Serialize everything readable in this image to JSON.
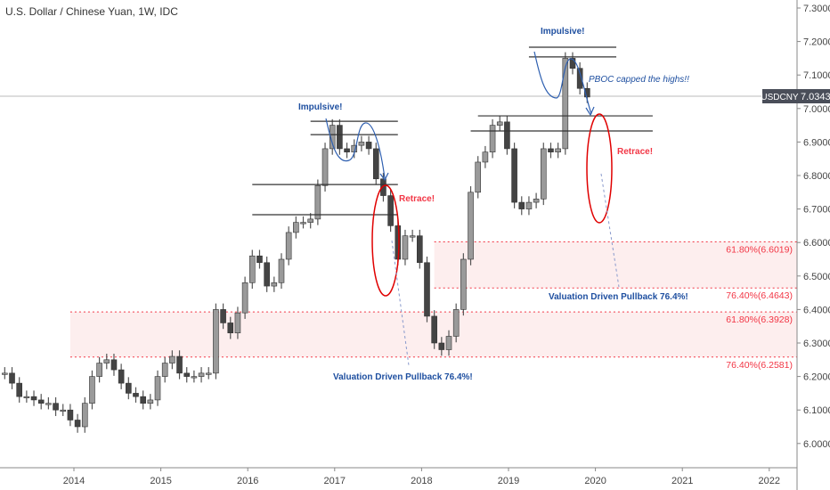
{
  "header": {
    "title": "U.S. Dollar / Chinese Yuan, 1W, IDC"
  },
  "price_label": {
    "symbol": "USDCNY",
    "value": "7.0343"
  },
  "chart_data": {
    "type": "ohlc-bar",
    "symbol": "USDCNY",
    "interval": "1W",
    "ylim": [
      5.96,
      7.33
    ],
    "xlim": [
      "2013-03",
      "2022-06"
    ],
    "y_ticks": [
      "7.3000",
      "7.2000",
      "7.1000",
      "7.0000",
      "6.9000",
      "6.8000",
      "6.7000",
      "6.6000",
      "6.5000",
      "6.4000",
      "6.3000",
      "6.2000",
      "6.1000",
      "6.0000"
    ],
    "x_ticks": [
      "2014",
      "2015",
      "2016",
      "2017",
      "2018",
      "2019",
      "2020",
      "2021",
      "2022"
    ],
    "last_price": 7.0343,
    "dates": [
      "2013-03",
      "2013-04",
      "2013-05",
      "2013-06",
      "2013-07",
      "2013-08",
      "2013-09",
      "2013-10",
      "2013-11",
      "2013-12",
      "2014-01",
      "2014-02",
      "2014-03",
      "2014-04",
      "2014-05",
      "2014-06",
      "2014-07",
      "2014-08",
      "2014-09",
      "2014-10",
      "2014-11",
      "2014-12",
      "2015-01",
      "2015-02",
      "2015-03",
      "2015-04",
      "2015-05",
      "2015-06",
      "2015-07",
      "2015-08",
      "2015-09",
      "2015-10",
      "2015-11",
      "2015-12",
      "2016-01",
      "2016-02",
      "2016-03",
      "2016-04",
      "2016-05",
      "2016-06",
      "2016-07",
      "2016-08",
      "2016-09",
      "2016-10",
      "2016-11",
      "2016-12",
      "2017-01",
      "2017-02",
      "2017-03",
      "2017-04",
      "2017-05",
      "2017-06",
      "2017-07",
      "2017-08",
      "2017-09",
      "2017-10",
      "2017-11",
      "2017-12",
      "2018-01",
      "2018-02",
      "2018-03",
      "2018-04",
      "2018-05",
      "2018-06",
      "2018-07",
      "2018-08",
      "2018-09",
      "2018-10",
      "2018-11",
      "2018-12",
      "2019-01",
      "2019-02",
      "2019-03",
      "2019-04",
      "2019-05",
      "2019-06",
      "2019-07",
      "2019-08",
      "2019-09",
      "2019-10",
      "2019-11"
    ],
    "close": [
      6.21,
      6.18,
      6.14,
      6.14,
      6.13,
      6.12,
      6.12,
      6.1,
      6.1,
      6.07,
      6.05,
      6.12,
      6.2,
      6.24,
      6.25,
      6.22,
      6.18,
      6.15,
      6.14,
      6.12,
      6.13,
      6.2,
      6.24,
      6.26,
      6.21,
      6.2,
      6.2,
      6.21,
      6.21,
      6.4,
      6.36,
      6.33,
      6.39,
      6.48,
      6.56,
      6.54,
      6.47,
      6.48,
      6.55,
      6.63,
      6.66,
      6.66,
      6.67,
      6.77,
      6.88,
      6.95,
      6.88,
      6.87,
      6.89,
      6.9,
      6.88,
      6.79,
      6.74,
      6.65,
      6.55,
      6.62,
      6.62,
      6.54,
      6.38,
      6.3,
      6.28,
      6.32,
      6.4,
      6.55,
      6.75,
      6.84,
      6.87,
      6.95,
      6.96,
      6.88,
      6.72,
      6.7,
      6.72,
      6.73,
      6.88,
      6.87,
      6.88,
      7.15,
      7.12,
      7.06,
      7.0343
    ],
    "levels": [
      {
        "price": 6.962,
        "from": "2016-09",
        "to": "2017-09"
      },
      {
        "price": 6.922,
        "from": "2016-09",
        "to": "2017-09"
      },
      {
        "price": 6.773,
        "from": "2016-01",
        "to": "2017-09"
      },
      {
        "price": 6.683,
        "from": "2016-01",
        "to": "2017-09"
      },
      {
        "price": 7.183,
        "from": "2019-03",
        "to": "2020-03"
      },
      {
        "price": 7.154,
        "from": "2019-03",
        "to": "2020-03"
      },
      {
        "price": 6.978,
        "from": "2018-08",
        "to": "2020-08"
      },
      {
        "price": 6.933,
        "from": "2018-07",
        "to": "2020-08"
      }
    ],
    "fib_zones": [
      {
        "from": "2018-02",
        "top": 6.6019,
        "bottom": 6.4643,
        "top_label": "61.80%(6.6019)",
        "bottom_label": "76.40%(6.4643)"
      },
      {
        "from": "2013-12",
        "top": 6.3928,
        "bottom": 6.2581,
        "top_label": "61.80%(6.3928)",
        "bottom_label": "76.40%(6.2581)"
      }
    ],
    "annotations": {
      "impulsive_1": "Impulsive!",
      "impulsive_2": "Impulsive!",
      "retrace_1": "Retrace!",
      "retrace_2": "Retrace!",
      "pboc": "PBOC capped the highs!!",
      "pullback_1": "Valuation Driven Pullback 76.4%!",
      "pullback_2": "Valuation Driven Pullback 76.4%!"
    },
    "colors": {
      "bars": "#555555",
      "levels": "#333333",
      "fib": "#f23645",
      "fib_fill": "#fdeeee",
      "annotation_blue": "#1e4fa0",
      "ellipse": "#e00000",
      "price_tag": "#4a4e59"
    }
  }
}
